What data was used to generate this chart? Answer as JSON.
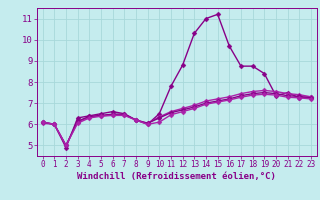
{
  "title": "",
  "xlabel": "Windchill (Refroidissement éolien,°C)",
  "ylabel": "",
  "xlim": [
    -0.5,
    23.5
  ],
  "ylim": [
    4.5,
    11.5
  ],
  "yticks": [
    5,
    6,
    7,
    8,
    9,
    10,
    11
  ],
  "xticks": [
    0,
    1,
    2,
    3,
    4,
    5,
    6,
    7,
    8,
    9,
    10,
    11,
    12,
    13,
    14,
    15,
    16,
    17,
    18,
    19,
    20,
    21,
    22,
    23
  ],
  "bg_color": "#c5ecee",
  "grid_color": "#a8d8da",
  "line_color": "#880088",
  "line_color2": "#aa22aa",
  "lines": [
    {
      "x": [
        0,
        1,
        2,
        3,
        4,
        5,
        6,
        7,
        8,
        9,
        10,
        11,
        12,
        13,
        14,
        15,
        16,
        17,
        18,
        19,
        20,
        21,
        22,
        23
      ],
      "y": [
        6.1,
        6.0,
        4.9,
        6.3,
        6.4,
        6.5,
        6.6,
        6.5,
        6.2,
        6.0,
        6.5,
        7.8,
        8.8,
        10.3,
        11.0,
        11.2,
        9.7,
        8.75,
        8.75,
        8.4,
        7.35,
        7.5,
        7.25,
        7.3
      ],
      "lw": 1.0
    },
    {
      "x": [
        0,
        1,
        2,
        3,
        4,
        5,
        6,
        7,
        8,
        9,
        10,
        11,
        12,
        13,
        14,
        15,
        16,
        17,
        18,
        19,
        20,
        21,
        22,
        23
      ],
      "y": [
        6.05,
        6.0,
        5.0,
        6.1,
        6.35,
        6.4,
        6.45,
        6.45,
        6.2,
        6.05,
        6.35,
        6.6,
        6.75,
        6.9,
        7.1,
        7.2,
        7.3,
        7.45,
        7.55,
        7.6,
        7.55,
        7.45,
        7.4,
        7.3
      ],
      "lw": 1.0
    },
    {
      "x": [
        0,
        1,
        2,
        3,
        4,
        5,
        6,
        7,
        8,
        9,
        10,
        11,
        12,
        13,
        14,
        15,
        16,
        17,
        18,
        19,
        20,
        21,
        22,
        23
      ],
      "y": [
        6.1,
        6.0,
        5.0,
        6.15,
        6.37,
        6.42,
        6.48,
        6.48,
        6.2,
        6.05,
        6.3,
        6.55,
        6.68,
        6.82,
        7.0,
        7.1,
        7.2,
        7.35,
        7.45,
        7.5,
        7.45,
        7.35,
        7.32,
        7.25
      ],
      "lw": 1.0
    },
    {
      "x": [
        0,
        1,
        2,
        3,
        4,
        5,
        6,
        7,
        8,
        9,
        10,
        11,
        12,
        13,
        14,
        15,
        16,
        17,
        18,
        19,
        20,
        21,
        22,
        23
      ],
      "y": [
        6.1,
        6.0,
        5.0,
        6.05,
        6.3,
        6.38,
        6.42,
        6.42,
        6.2,
        6.0,
        6.1,
        6.45,
        6.6,
        6.75,
        6.95,
        7.05,
        7.15,
        7.28,
        7.38,
        7.42,
        7.38,
        7.28,
        7.25,
        7.2
      ],
      "lw": 1.0
    }
  ],
  "tick_color": "#880088",
  "tick_fontsize": 5.5,
  "xlabel_fontsize": 6.5,
  "xlabel_color": "#880088",
  "ytick_fontsize": 6.5,
  "marker_size": 2.5
}
